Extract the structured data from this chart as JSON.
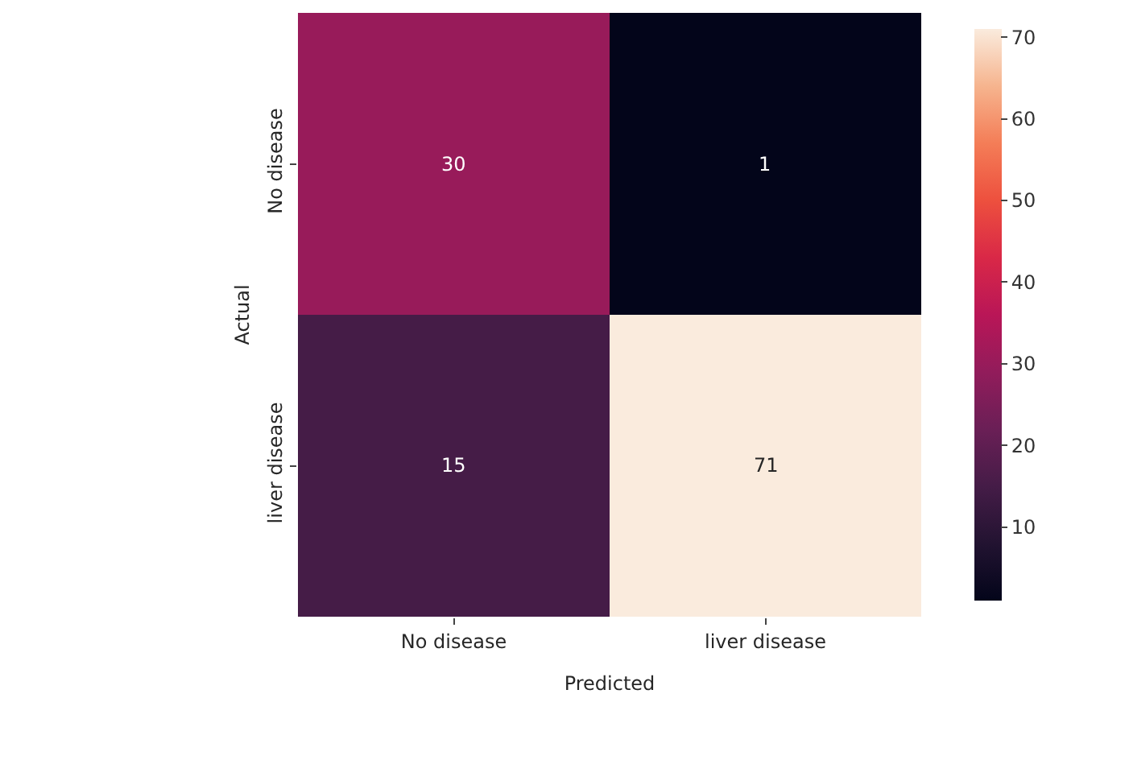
{
  "chart_data": {
    "type": "heatmap",
    "xlabel": "Predicted",
    "ylabel": "Actual",
    "categories": [
      "No disease",
      "liver disease"
    ],
    "y_categories": [
      "No disease",
      "liver disease"
    ],
    "cells": [
      [
        30,
        1
      ],
      [
        15,
        71
      ]
    ],
    "data_labels": true,
    "clim": [
      1,
      71
    ],
    "cticks": [
      10,
      20,
      30,
      40,
      50,
      60,
      70
    ]
  }
}
